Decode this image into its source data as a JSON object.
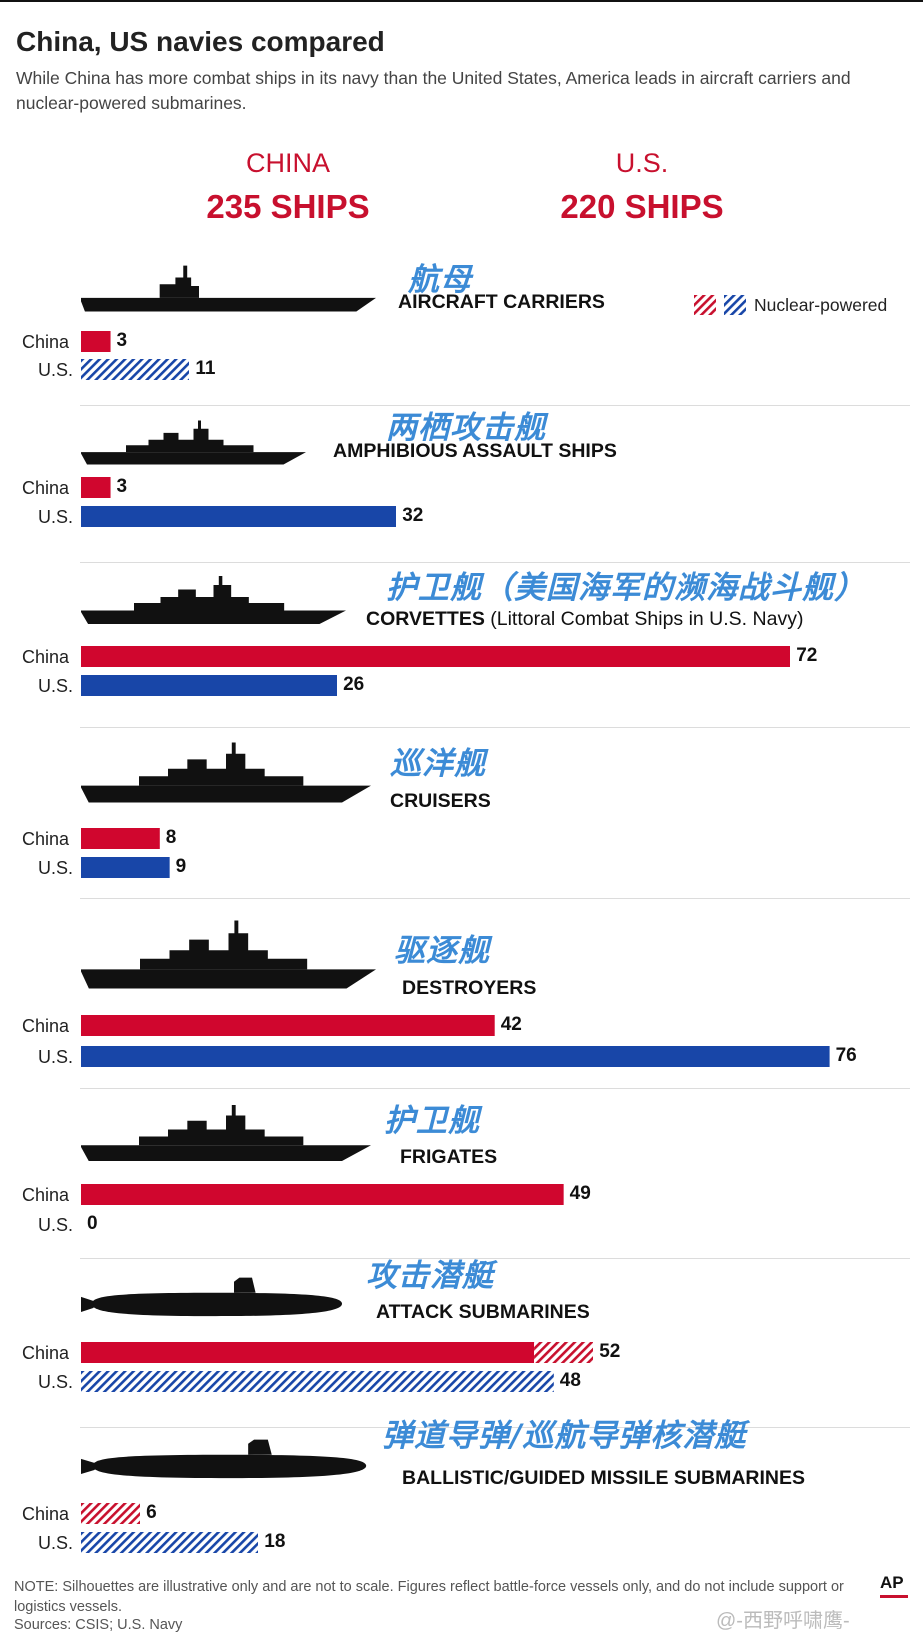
{
  "title": "China, US navies compared",
  "subtitle": "While China has more combat ships in its navy than the United States, America leads in aircraft carriers and nuclear-powered submarines.",
  "totals": {
    "china_name": "CHINA",
    "china_ships": "235 SHIPS",
    "us_name": "U.S.",
    "us_ships": "220 SHIPS"
  },
  "legend": {
    "label": "Nuclear-powered"
  },
  "row_labels": {
    "china": "China",
    "us": "U.S."
  },
  "colors": {
    "china": "#d0062e",
    "us": "#1846a8",
    "china_hatch": "#c8102e",
    "us_hatch": "#1846a8"
  },
  "chart_data": {
    "type": "bar",
    "orientation": "horizontal",
    "series_names": [
      "China",
      "U.S."
    ],
    "groups": [
      {
        "cn": "航母",
        "en": "AIRCRAFT CARRIERS",
        "en_extra": "",
        "china": 3,
        "us": 11,
        "china_nuclear": 0,
        "us_nuclear": 11,
        "icon": "aircraft-carrier-icon"
      },
      {
        "cn": "两栖攻击舰",
        "en": "AMPHIBIOUS ASSAULT SHIPS",
        "en_extra": "",
        "china": 3,
        "us": 32,
        "china_nuclear": 0,
        "us_nuclear": 0,
        "icon": "amphibious-ship-icon"
      },
      {
        "cn": "护卫舰（美国海军的濒海战斗舰）",
        "en": "CORVETTES",
        "en_extra": " (Littoral Combat Ships in U.S. Navy)",
        "china": 72,
        "us": 26,
        "china_nuclear": 0,
        "us_nuclear": 0,
        "icon": "corvette-icon"
      },
      {
        "cn": "巡洋舰",
        "en": "CRUISERS",
        "en_extra": "",
        "china": 8,
        "us": 9,
        "china_nuclear": 0,
        "us_nuclear": 0,
        "icon": "cruiser-icon"
      },
      {
        "cn": "驱逐舰",
        "en": "DESTROYERS",
        "en_extra": "",
        "china": 42,
        "us": 76,
        "china_nuclear": 0,
        "us_nuclear": 0,
        "icon": "destroyer-icon"
      },
      {
        "cn": "护卫舰",
        "en": "FRIGATES",
        "en_extra": "",
        "china": 49,
        "us": 0,
        "china_nuclear": 0,
        "us_nuclear": 0,
        "icon": "frigate-icon"
      },
      {
        "cn": "攻击潜艇",
        "en": "ATTACK SUBMARINES",
        "en_extra": "",
        "china": 52,
        "us": 48,
        "china_nuclear": 6,
        "us_nuclear": 48,
        "icon": "attack-submarine-icon"
      },
      {
        "cn": "弹道导弹/巡航导弹核潜艇",
        "en": "BALLISTIC/GUIDED MISSILE SUBMARINES",
        "en_extra": "",
        "china": 6,
        "us": 18,
        "china_nuclear": 6,
        "us_nuclear": 18,
        "icon": "missile-submarine-icon"
      }
    ]
  },
  "note": "NOTE: Silhouettes are illustrative only and are not to scale. Figures reflect battle-force vessels only, and do not include support or logistics vessels.",
  "sources": "Sources: CSIS; U.S. Navy",
  "brand": "AP",
  "watermark": "@-西野呼啸鹰-"
}
